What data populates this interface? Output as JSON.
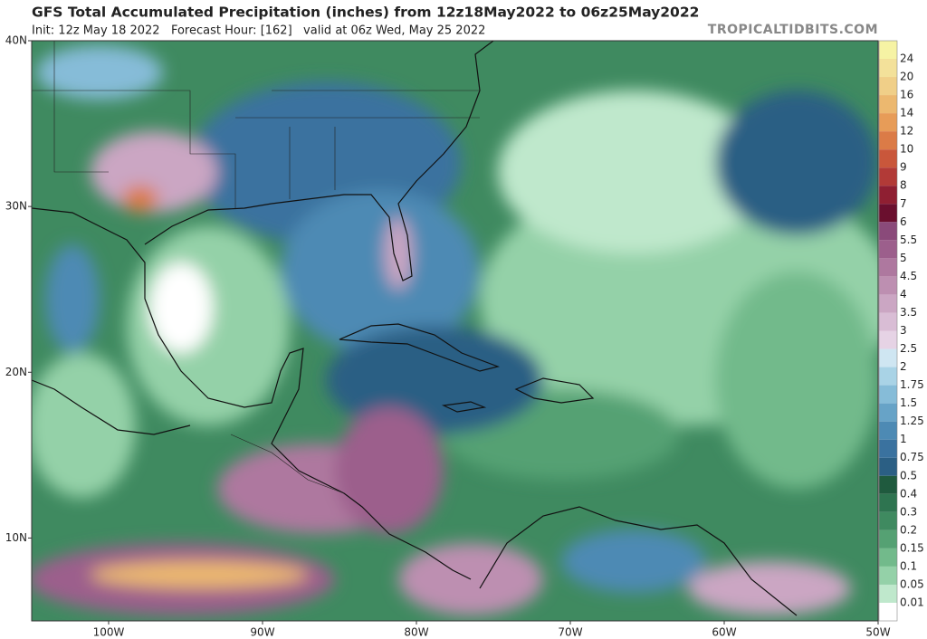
{
  "header": {
    "title": "GFS Total Accumulated Precipitation (inches) from 12z18May2022 to 06z25May2022",
    "subtitle": "Init: 12z May 18 2022   Forecast Hour: [162]   valid at 06z Wed, May 25 2022",
    "watermark": "TROPICALTIDBITS.COM"
  },
  "map": {
    "lat_range": [
      5,
      40
    ],
    "lon_range": [
      -105,
      -50
    ],
    "lat_ticks": [
      {
        "value": 40,
        "label": "40N"
      },
      {
        "value": 30,
        "label": "30N"
      },
      {
        "value": 20,
        "label": "20N"
      },
      {
        "value": 10,
        "label": "10N"
      }
    ],
    "lon_ticks": [
      {
        "value": -100,
        "label": "100W"
      },
      {
        "value": -90,
        "label": "90W"
      },
      {
        "value": -80,
        "label": "80W"
      },
      {
        "value": -70,
        "label": "70W"
      },
      {
        "value": -60,
        "label": "60W"
      },
      {
        "value": -50,
        "label": "50W"
      }
    ]
  },
  "colorbar": {
    "levels": [
      24,
      20,
      16,
      14,
      12,
      10,
      9,
      8,
      7,
      6,
      5.5,
      5,
      4.5,
      4,
      3.5,
      3,
      2.5,
      2,
      1.75,
      1.5,
      1.25,
      1,
      0.75,
      0.5,
      0.4,
      0.3,
      0.2,
      0.15,
      0.1,
      0.05,
      0.01
    ],
    "colors": [
      "#f6f3a4",
      "#f3e19a",
      "#f0cf88",
      "#ecb86f",
      "#e79c58",
      "#db7b47",
      "#c9573b",
      "#b23a37",
      "#8f1f32",
      "#6a0f2e",
      "#8a4a7a",
      "#9c5f8c",
      "#ae789f",
      "#bd8fb1",
      "#cba6c3",
      "#d9bdd5",
      "#e6d3e5",
      "#cfe6f2",
      "#a9d3e6",
      "#86bcd8",
      "#67a3c7",
      "#4d8ab4",
      "#3a729f",
      "#2b5f84",
      "#1f5a3e",
      "#2e7450",
      "#3f8a60",
      "#55a173",
      "#72ba8b",
      "#94d1a8",
      "#bfe8cc"
    ]
  }
}
